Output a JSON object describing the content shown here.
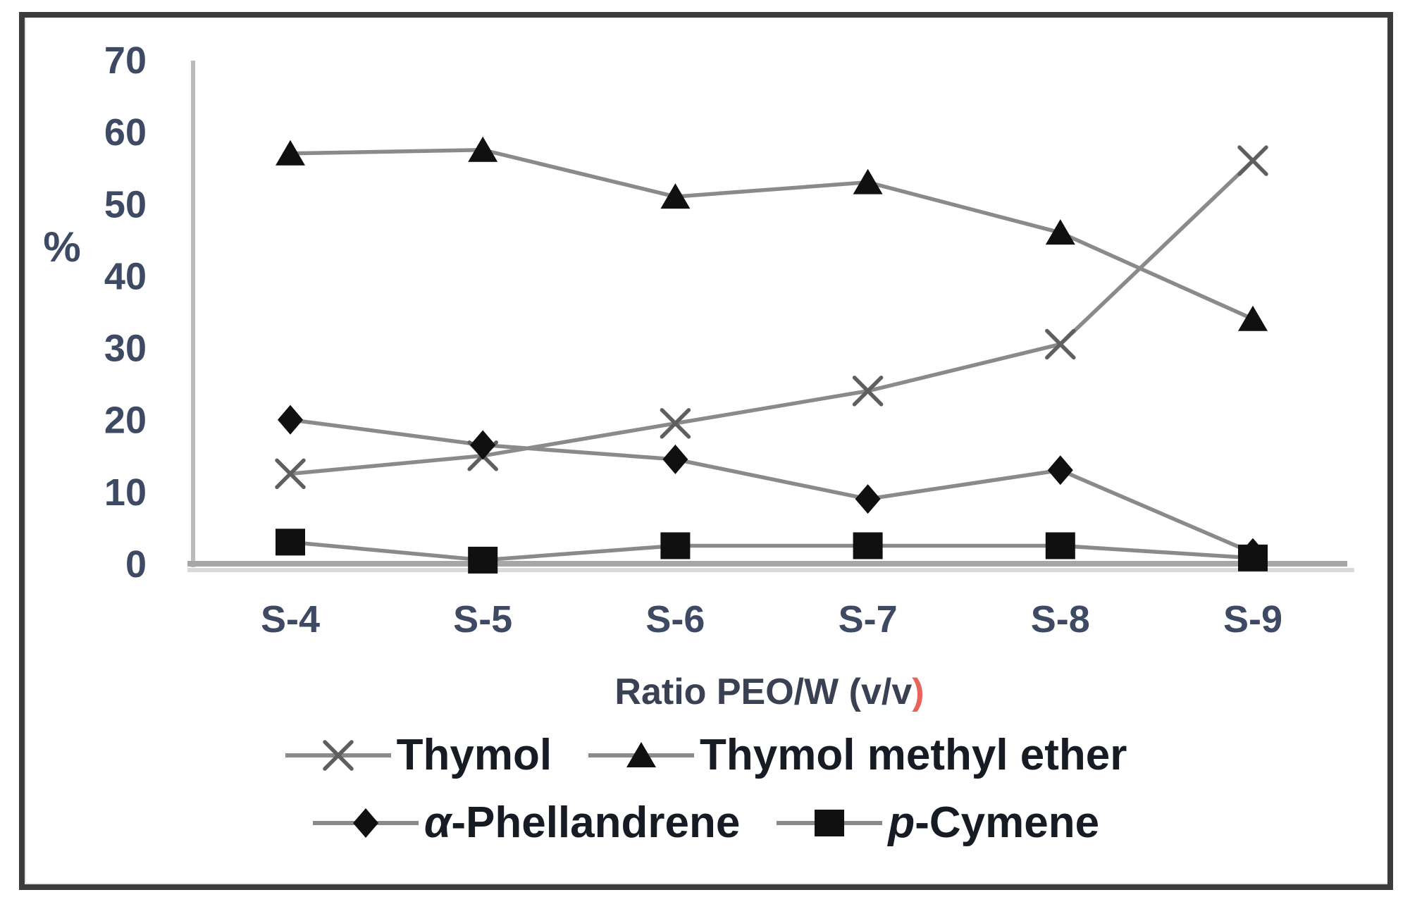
{
  "figure": {
    "kind": "scientific line chart pasted in a bordered frame",
    "frame_color": "#3c3c3c",
    "background": "#ffffff"
  },
  "chart_data": {
    "type": "line",
    "title": "",
    "categories": [
      "S-4",
      "S-5",
      "S-6",
      "S-7",
      "S-8",
      "S-9"
    ],
    "series": [
      {
        "name": "Thymol",
        "marker": "x",
        "values": [
          12.5,
          15,
          19.5,
          24,
          30.5,
          56
        ]
      },
      {
        "name": "Thymol methyl ether",
        "marker": "triangle",
        "values": [
          57,
          57.5,
          51,
          53,
          46,
          34
        ]
      },
      {
        "name": "α-Phellandrene",
        "marker": "diamond",
        "values": [
          20,
          16.5,
          14.5,
          9,
          13,
          1.5
        ]
      },
      {
        "name": "p-Cymene",
        "marker": "square",
        "values": [
          3,
          0.5,
          2.5,
          2.5,
          2.5,
          0.8
        ]
      }
    ],
    "xlabel": "Ratio PEO/W (v/v)",
    "ylabel": "%",
    "yticks": [
      0,
      10,
      20,
      30,
      40,
      50,
      60,
      70
    ],
    "ylim": [
      0,
      70
    ],
    "grid": false,
    "legend_position": "bottom"
  },
  "xaxis_title": {
    "text": "Ratio PEO/W (v/v",
    "paren": ")",
    "paren_color": "#e8635a"
  },
  "legend": {
    "rows": [
      [
        {
          "marker": "x",
          "italic": "",
          "label": "Thymol"
        },
        {
          "marker": "triangle",
          "italic": "",
          "label": "Thymol methyl ether"
        }
      ],
      [
        {
          "marker": "diamond",
          "italic": "α",
          "label": "-Phellandrene"
        },
        {
          "marker": "square",
          "italic": "p",
          "label": "-Cymene"
        }
      ]
    ]
  },
  "colors": {
    "series_line": "#8a8a8a",
    "marker_black": "#101010",
    "marker_x": "#5f5f5f",
    "axis_line": "#bcbcbc",
    "baseline": "#a6a6a6",
    "baseline_shadow": "#d9d9d9",
    "tick_text": "#3e4a63",
    "title_text": "#3a4152",
    "legend_text": "#171b24"
  }
}
